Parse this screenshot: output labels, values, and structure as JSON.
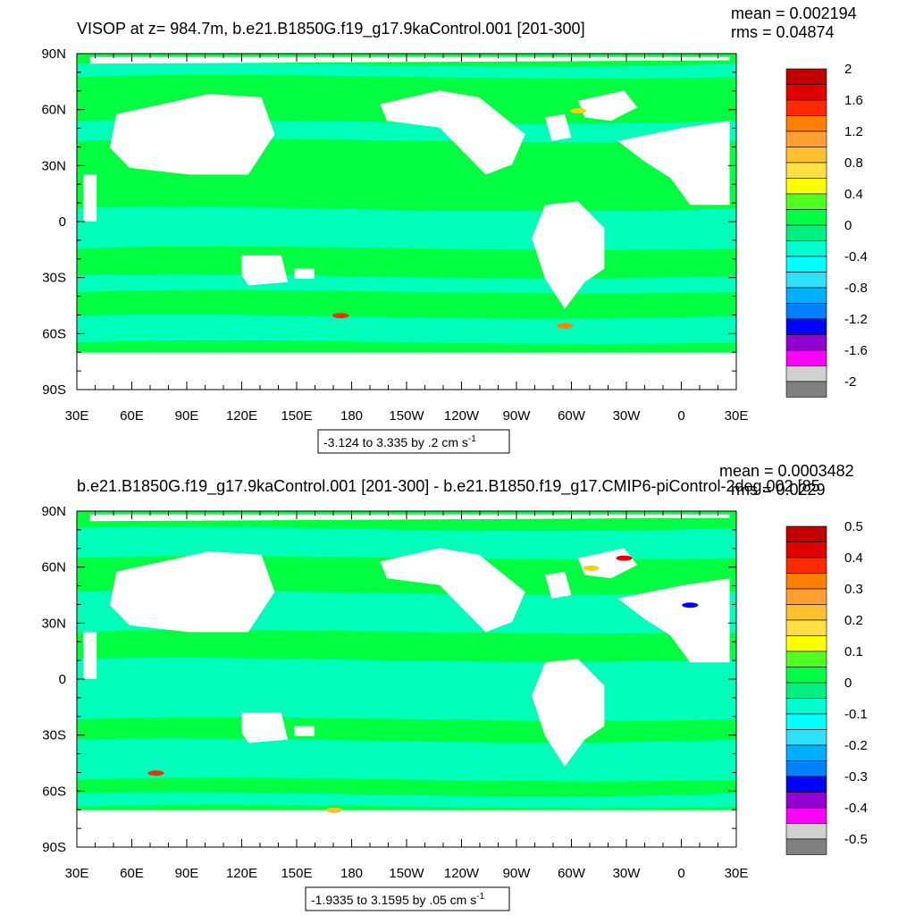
{
  "chart_data": [
    {
      "type": "heatmap",
      "title": "VISOP at z= 984.7m, b.e21.B1850G.f19_g17.9kaControl.001 [201-300]",
      "stats": {
        "mean_label": "mean = 0.002194",
        "rms_label": "rms = 0.04874"
      },
      "x_ticks": [
        "30E",
        "60E",
        "90E",
        "120E",
        "150E",
        "180",
        "150W",
        "120W",
        "90W",
        "60W",
        "30W",
        "0",
        "30E"
      ],
      "y_ticks": [
        "90N",
        "60N",
        "30N",
        "0",
        "30S",
        "60S",
        "90S"
      ],
      "colorbar_labels": [
        "2",
        "1.6",
        "1.2",
        "0.8",
        "0.4",
        "0",
        "-0.4",
        "-0.8",
        "-1.2",
        "-1.6",
        "-2"
      ],
      "colorbar_colors": [
        "#c00000",
        "#e00000",
        "#ff2a00",
        "#ff7f00",
        "#ffa030",
        "#ffc030",
        "#ffe040",
        "#ffff00",
        "#50ff20",
        "#00ff40",
        "#00ef80",
        "#00ffd0",
        "#00ffff",
        "#30e0ff",
        "#00b0ff",
        "#0080ff",
        "#0000ff",
        "#9000d0",
        "#ff00ff",
        "#d0d0d0",
        "#808080"
      ],
      "range_label": "-3.124 to 3.335 by .2 cm s",
      "range_unit_exp": "-1"
    },
    {
      "type": "heatmap",
      "title": "b.e21.B1850G.f19_g17.9kaControl.001 [201-300] - b.e21.B1850.f19_g17.CMIP6-piControl-2deg.002 [85",
      "stats": {
        "mean_label": "mean = 0.0003482",
        "rms_label": "rms = 0.0229"
      },
      "x_ticks": [
        "30E",
        "60E",
        "90E",
        "120E",
        "150E",
        "180",
        "150W",
        "120W",
        "90W",
        "60W",
        "30W",
        "0",
        "30E"
      ],
      "y_ticks": [
        "90N",
        "60N",
        "30N",
        "0",
        "30S",
        "60S",
        "90S"
      ],
      "colorbar_labels": [
        "0.5",
        "0.4",
        "0.3",
        "0.2",
        "0.1",
        "0",
        "-0.1",
        "-0.2",
        "-0.3",
        "-0.4",
        "-0.5"
      ],
      "colorbar_colors": [
        "#c00000",
        "#e00000",
        "#ff2a00",
        "#ff7f00",
        "#ffa030",
        "#ffc030",
        "#ffe040",
        "#ffff00",
        "#50ff20",
        "#00ff40",
        "#00ef80",
        "#00ffd0",
        "#00ffff",
        "#30e0ff",
        "#00b0ff",
        "#0080ff",
        "#0000ff",
        "#9000d0",
        "#ff00ff",
        "#d0d0d0",
        "#808080"
      ],
      "range_label": "-1.9335 to 3.1595 by .05 cm s",
      "range_unit_exp": "-1"
    }
  ],
  "colors": {
    "field_green": "#00ff40",
    "field_cyan": "#00ffd0",
    "land": "#ffffff"
  }
}
